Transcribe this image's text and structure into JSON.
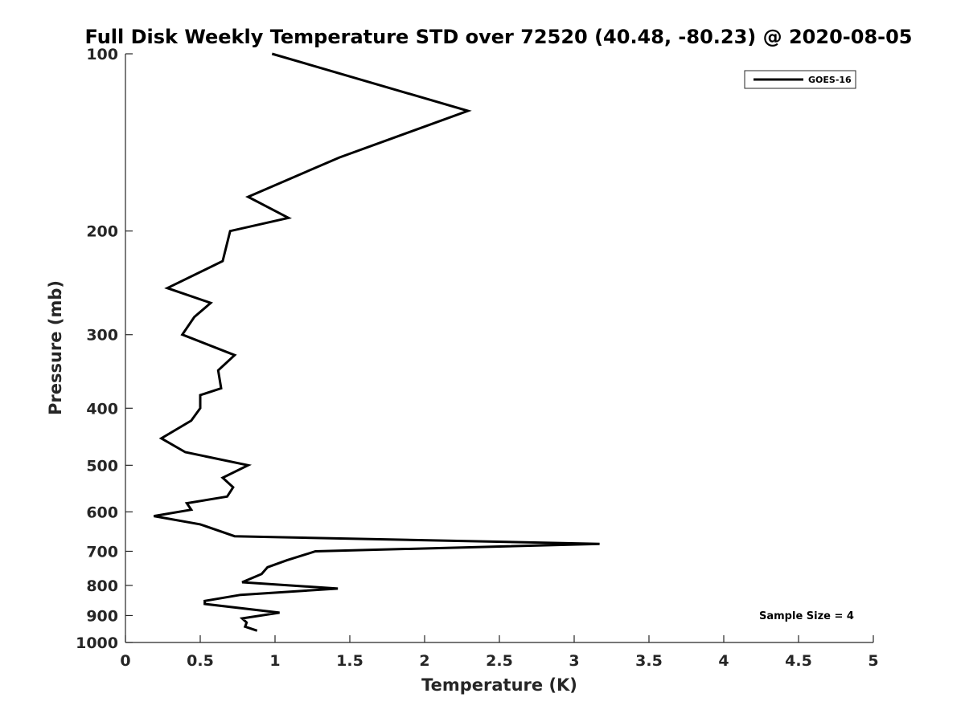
{
  "chart_data": {
    "type": "line",
    "title": "Full Disk Weekly Temperature STD over 72520 (40.48, -80.23) @ 2020-08-05",
    "xlabel": "Temperature (K)",
    "ylabel": "Pressure (mb)",
    "xlim": [
      0,
      5
    ],
    "ylim": [
      100,
      1000
    ],
    "yscale": "log",
    "y_reversed": true,
    "xticks": [
      0,
      0.5,
      1,
      1.5,
      2,
      2.5,
      3,
      3.5,
      4,
      4.5,
      5
    ],
    "xtick_labels": [
      "0",
      "0.5",
      "1",
      "1.5",
      "2",
      "2.5",
      "3",
      "3.5",
      "4",
      "4.5",
      "5"
    ],
    "yticks": [
      100,
      200,
      300,
      400,
      500,
      600,
      700,
      800,
      900,
      1000
    ],
    "ytick_labels": [
      "100",
      "200",
      "300",
      "400",
      "500",
      "600",
      "700",
      "800",
      "900",
      "1000"
    ],
    "grid": false,
    "legend_position": "top-right",
    "annotation": "Sample Size = 4",
    "series": [
      {
        "name": "GOES-16",
        "color": "#000000",
        "x": [
          0.98,
          2.29,
          1.43,
          0.82,
          1.09,
          0.7,
          0.65,
          0.28,
          0.57,
          0.46,
          0.38,
          0.73,
          0.62,
          0.64,
          0.5,
          0.5,
          0.44,
          0.24,
          0.4,
          0.82,
          0.65,
          0.72,
          0.68,
          0.41,
          0.44,
          0.19,
          0.5,
          0.73,
          3.17,
          1.27,
          1.08,
          0.95,
          0.91,
          0.78,
          1.42,
          0.77,
          0.53,
          0.53,
          1.03,
          0.78,
          0.81,
          0.8,
          0.88
        ],
        "y": [
          100,
          125,
          150,
          175,
          190,
          200,
          225,
          250,
          265,
          280,
          300,
          325,
          345,
          370,
          380,
          400,
          420,
          450,
          475,
          500,
          525,
          545,
          565,
          580,
          595,
          610,
          630,
          660,
          680,
          700,
          725,
          745,
          765,
          790,
          810,
          830,
          850,
          860,
          890,
          910,
          925,
          940,
          955
        ]
      }
    ]
  }
}
